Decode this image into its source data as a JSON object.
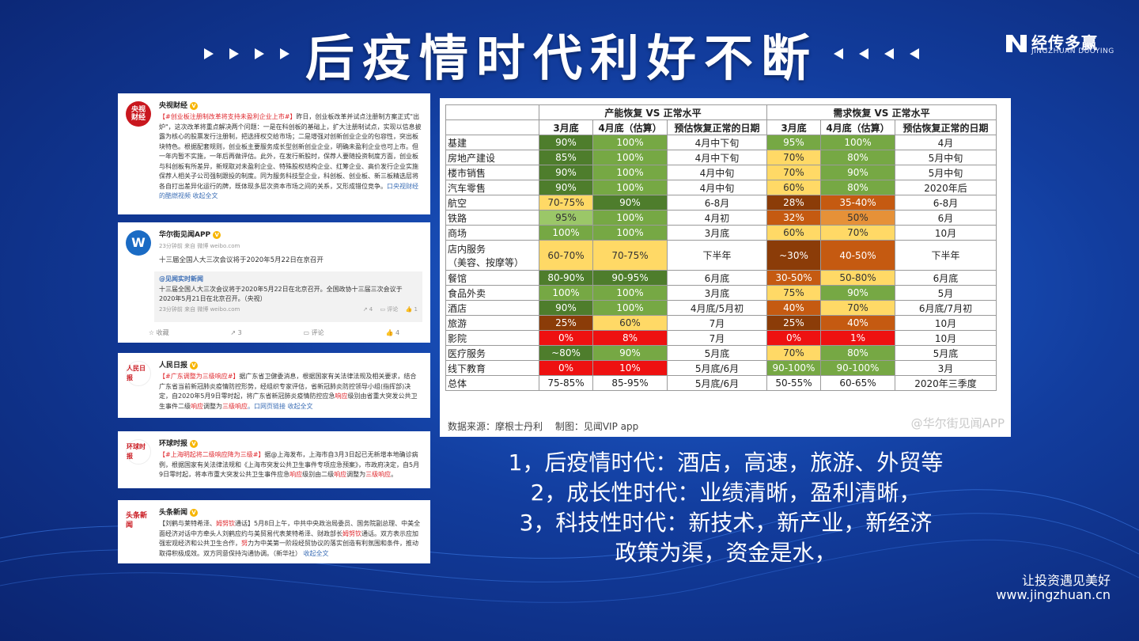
{
  "title": "后疫情时代利好不断",
  "logo": {
    "name": "经传多赢",
    "sub": "JINGZHUAN DUOYING"
  },
  "cards": [
    {
      "name": "央视财经",
      "avatar": "央视财经",
      "hashtag": "【#创业板注册制改革将支持未盈利企业上市#】",
      "text": "昨日，创业板改革并试点注册制方案正式\"出炉\"，这次改革将重点解决两个问题：一是在科创板的基础上，扩大注册制试点，实现以信息披露为核心的股票发行注册制，把选择权交给市场；二是增强对创新创业企业的包容性，突出板块特色。根据配套规则，创业板主要服务成长型创新创业企业，明确未盈利企业也可上市。但一年内暂不实施，一年后再做评估。此外，在发行新股时，保荐人要随投资制度方面，创业板与科创板有所差异，新规取对未盈利企业、特殊股权结构企业、红筹企业、高价发行企业实施保荐人相关子公司强制跟投的制度。同为服务科技型企业，科创板、创业板、新三板精选层将各自打出差异化运行的牌，既体现多层次资本市场之间的关系，又形成错位竞争。",
      "link": "口央视财经的酷燃视频 收起全文"
    },
    {
      "name": "华尔街见闻APP",
      "avatar": "W",
      "meta": "23分钟前 来自 微博 weibo.com",
      "text": "十三届全国人大三次会议将于2020年5月22日在京召开",
      "quote_name": "@见闻实时新闻",
      "quote_text": "十三届全国人大三次会议将于2020年5月22日在北京召开。全国政协十三届三次会议于2020年5月21日在北京召开。（央视）",
      "quote_meta": "23分钟前 来自 微博 weibo.com",
      "actions": [
        "收藏",
        "3",
        "评论",
        "4"
      ],
      "quote_actions": [
        "4",
        "评论",
        "1"
      ]
    },
    {
      "name": "人民日报",
      "avatar": "人民日报",
      "hashtag": "【#广东调整为三级响应#】",
      "text": "据广东省卫健委消息，根据国家有关法律法规及相关要求，结合广东省当前新冠肺炎疫情防控形势，经组织专家评估，省新冠肺炎防控领导小组(指挥部)决定，自2020年5月9日零时起，将广东省新冠肺炎疫情防控应急",
      "hl1": "响应",
      "text2": "级别由省重大突发公共卫生事件二级",
      "hl2": "响应",
      "text3": "调整为",
      "hl3": "三级响应",
      "link": "。口网页链接 收起全文"
    },
    {
      "name": "环球时报",
      "avatar": "环球时报",
      "hashtag": "【#上海明起将二级响应降为三级#】",
      "text": "据@上海发布，上海市自3月3日起已无新增本地确诊病例，根据国家有关法律法规和《上海市突发公共卫生事件专项应急预案》，市政府决定，自5月9日零时起，将本市重大突发公共卫生事件应急",
      "hl1": "响应",
      "text2": "级别由二级",
      "hl2": "响应",
      "text3": "调整为",
      "hl3": "三级响应",
      "end": "。"
    },
    {
      "name": "头条新闻",
      "avatar": "头条新闻",
      "hashtag": "【刘鹤与莱特希泽、",
      "hl0": "姆努钦",
      "hashtag2": "通话】",
      "text": "5月8日上午，中共中央政治局委员、国务院副总理、中美全面经济对话中方牵头人刘鹤应约与美贸易代表莱特希泽、财政部长",
      "hl1": "姆努钦",
      "text2": "通话。双方表示应加强宏观经济和公共卫生合作，",
      "hl2": "努",
      "text3": "力为中美第一阶段经贸协议的落实创造有利氛围和条件，推动取得积极成效。双方同意保持沟通协调。（新华社）",
      "link": "收起全文"
    }
  ],
  "table": {
    "group1": "产能恢复 VS 正常水平",
    "group2": "需求恢复 VS 正常水平",
    "cols": [
      "3月底",
      "4月底（估算）",
      "预估恢复正常的日期",
      "3月底",
      "4月底（估算）",
      "预估恢复正常的日期"
    ],
    "rows": [
      {
        "cat": "基建",
        "v": [
          "90%",
          "100%",
          "4月中下旬",
          "95%",
          "100%",
          "4月"
        ],
        "c": [
          "dg",
          "g",
          "",
          "g",
          "g",
          ""
        ]
      },
      {
        "cat": "房地产建设",
        "v": [
          "85%",
          "100%",
          "4月中下旬",
          "70%",
          "80%",
          "5月中旬"
        ],
        "c": [
          "dg",
          "g",
          "",
          "y",
          "g",
          ""
        ]
      },
      {
        "cat": "楼市销售",
        "v": [
          "90%",
          "100%",
          "4月中旬",
          "70%",
          "90%",
          "5月中旬"
        ],
        "c": [
          "dg",
          "g",
          "",
          "y",
          "g",
          ""
        ]
      },
      {
        "cat": "汽车零售",
        "v": [
          "90%",
          "100%",
          "4月中旬",
          "60%",
          "80%",
          "2020年后"
        ],
        "c": [
          "dg",
          "g",
          "",
          "y",
          "g",
          ""
        ]
      },
      {
        "cat": "航空",
        "v": [
          "70-75%",
          "90%",
          "6-8月",
          "28%",
          "35-40%",
          "6-8月"
        ],
        "c": [
          "y",
          "dg",
          "",
          "br",
          "do",
          ""
        ]
      },
      {
        "cat": "铁路",
        "v": [
          "95%",
          "100%",
          "4月初",
          "32%",
          "50%",
          "6月"
        ],
        "c": [
          "lg",
          "g",
          "",
          "do",
          "o",
          ""
        ]
      },
      {
        "cat": "商场",
        "v": [
          "100%",
          "100%",
          "3月底",
          "60%",
          "70%",
          "10月"
        ],
        "c": [
          "g",
          "g",
          "",
          "y",
          "y",
          ""
        ]
      },
      {
        "cat": "店内服务",
        "cat2": "（美容、按摩等）",
        "v": [
          "60-70%",
          "70-75%",
          "下半年",
          "~30%",
          "40-50%",
          "下半年"
        ],
        "c": [
          "y",
          "y",
          "",
          "br",
          "do",
          ""
        ]
      },
      {
        "cat": "餐馆",
        "v": [
          "80-90%",
          "90-95%",
          "6月底",
          "30-50%",
          "50-80%",
          "6月底"
        ],
        "c": [
          "dg",
          "dg",
          "",
          "do",
          "y",
          ""
        ]
      },
      {
        "cat": "食品外卖",
        "v": [
          "100%",
          "100%",
          "3月底",
          "75%",
          "90%",
          "5月"
        ],
        "c": [
          "g",
          "g",
          "",
          "y",
          "g",
          ""
        ]
      },
      {
        "cat": "酒店",
        "v": [
          "90%",
          "100%",
          "4月底/5月初",
          "40%",
          "70%",
          "6月底/7月初"
        ],
        "c": [
          "dg",
          "g",
          "",
          "do",
          "y",
          ""
        ]
      },
      {
        "cat": "旅游",
        "v": [
          "25%",
          "60%",
          "7月",
          "25%",
          "40%",
          "10月"
        ],
        "c": [
          "br",
          "y",
          "",
          "br",
          "do",
          ""
        ]
      },
      {
        "cat": "影院",
        "v": [
          "0%",
          "8%",
          "7月",
          "0%",
          "1%",
          "10月"
        ],
        "c": [
          "r",
          "r",
          "",
          "r",
          "r",
          ""
        ]
      },
      {
        "cat": "医疗服务",
        "v": [
          "~80%",
          "90%",
          "5月底",
          "70%",
          "80%",
          "5月底"
        ],
        "c": [
          "dg",
          "g",
          "",
          "y",
          "g",
          ""
        ]
      },
      {
        "cat": "线下教育",
        "v": [
          "0%",
          "10%",
          "5月底/6月",
          "90-100%",
          "90-100%",
          "3月"
        ],
        "c": [
          "r",
          "r",
          "",
          "g",
          "g",
          ""
        ]
      },
      {
        "cat": "总体",
        "v": [
          "75-85%",
          "85-95%",
          "5月底/6月",
          "50-55%",
          "60-65%",
          "2020年三季度"
        ],
        "c": [
          "",
          "",
          "",
          "",
          "",
          ""
        ]
      }
    ],
    "source": "数据来源：摩根士丹利　 制图：见闻VIP app",
    "watermark": "@华尔街见闻APP"
  },
  "bullets": [
    "1，后疫情时代：酒店，高速，旅游、外贸等",
    "2，成长性时代：业绩清晰，盈利清晰，",
    "3，科技性时代：新技术，新产业，新经济",
    "政策为渠，资金是水，"
  ],
  "footer": {
    "slogan": "让投资遇见美好",
    "url": "www.jingzhuan.cn"
  }
}
